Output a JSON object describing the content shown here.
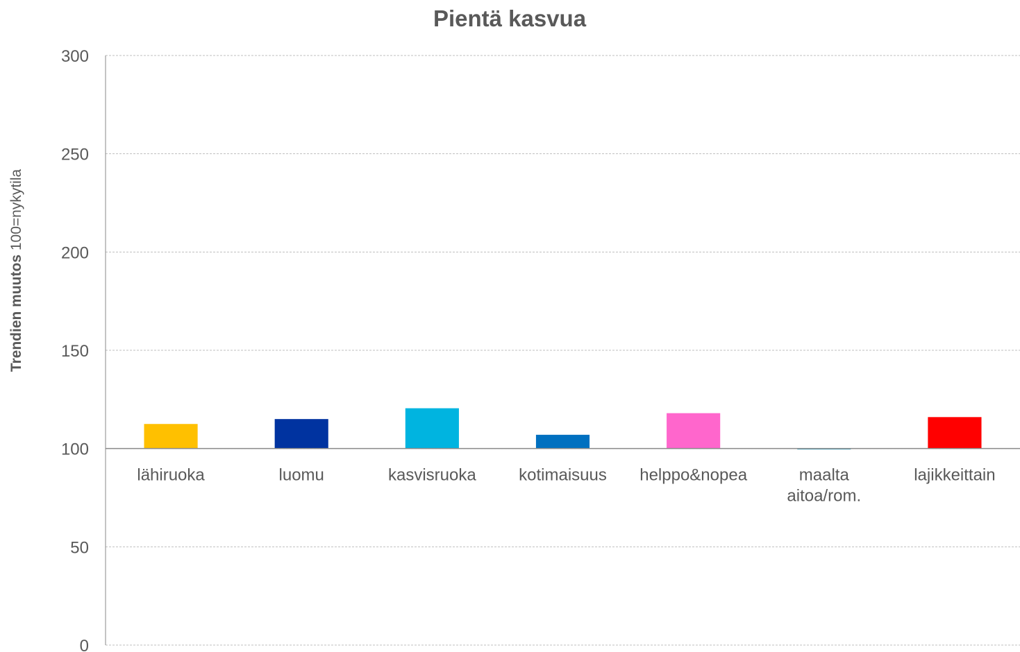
{
  "chart_data": {
    "type": "bar",
    "title": "Pientä kasvua",
    "ylabel": {
      "bold": "Trendien muutos",
      "normal": "100=nykytila"
    },
    "categories": [
      "lähiruoka",
      "luomu",
      "kasvisruoka",
      "kotimaisuus",
      "helppo&nopea",
      "maalta aitoa/rom.",
      "lajikkeittain"
    ],
    "values": [
      112.5,
      115,
      120.5,
      107,
      118,
      99.5,
      116
    ],
    "colors": [
      "#ffc000",
      "#0033a0",
      "#00b4e0",
      "#0070c0",
      "#ff66cc",
      "#4bacc6",
      "#ff0000"
    ],
    "x_axis_at": 100,
    "ylim": [
      0,
      300
    ],
    "yticks": [
      0,
      50,
      100,
      150,
      200,
      250,
      300
    ],
    "grid": true
  }
}
